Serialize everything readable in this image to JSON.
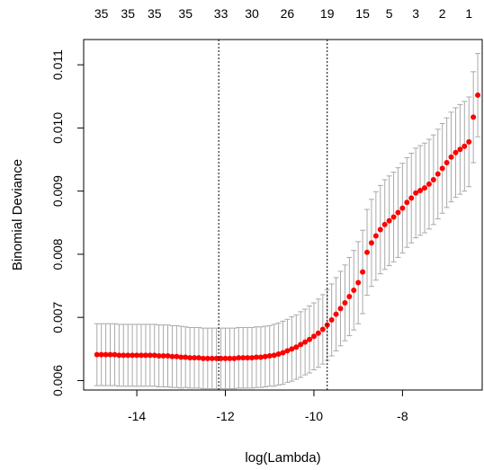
{
  "chart_data": {
    "type": "scatter",
    "xlabel": "log(Lambda)",
    "ylabel": "Binomial Deviance",
    "xlim": [
      -15.2,
      -6.2
    ],
    "ylim": [
      0.00585,
      0.0114
    ],
    "x_ticks": [
      -14,
      -12,
      -10,
      -8
    ],
    "x_tick_labels": [
      "-14",
      "-12",
      "-10",
      "-8"
    ],
    "y_ticks": [
      0.006,
      0.007,
      0.008,
      0.009,
      0.01,
      0.011
    ],
    "y_tick_labels": [
      "0.006",
      "0.007",
      "0.008",
      "0.009",
      "0.010",
      "0.011"
    ],
    "top_axis": {
      "ticks": [
        -14.8,
        -14.2,
        -13.6,
        -12.9,
        -12.1,
        -11.4,
        -10.6,
        -9.7,
        -8.9,
        -8.3,
        -7.7,
        -7.1,
        -6.5
      ],
      "labels": [
        "35",
        "35",
        "35",
        "35",
        "33",
        "30",
        "26",
        "19",
        "15",
        "5",
        "3",
        "2",
        "1"
      ]
    },
    "vlines": [
      -12.15,
      -9.7
    ],
    "point_color": "#ff0000",
    "errorbar_color": "#a9a9a9",
    "grid": false,
    "series": [
      {
        "x": [
          -14.9,
          -14.8,
          -14.7,
          -14.6,
          -14.5,
          -14.4,
          -14.3,
          -14.2,
          -14.1,
          -14.0,
          -13.9,
          -13.8,
          -13.7,
          -13.6,
          -13.5,
          -13.4,
          -13.3,
          -13.2,
          -13.1,
          -13.0,
          -12.9,
          -12.8,
          -12.7,
          -12.6,
          -12.5,
          -12.4,
          -12.3,
          -12.2,
          -12.1,
          -12.0,
          -11.9,
          -11.8,
          -11.7,
          -11.6,
          -11.5,
          -11.4,
          -11.3,
          -11.2,
          -11.1,
          -11.0,
          -10.9,
          -10.8,
          -10.7,
          -10.6,
          -10.5,
          -10.4,
          -10.3,
          -10.2,
          -10.1,
          -10.0,
          -9.9,
          -9.8,
          -9.7,
          -9.6,
          -9.5,
          -9.4,
          -9.3,
          -9.2,
          -9.1,
          -9.0,
          -8.9,
          -8.8,
          -8.7,
          -8.6,
          -8.5,
          -8.4,
          -8.3,
          -8.2,
          -8.1,
          -8.0,
          -7.9,
          -7.8,
          -7.7,
          -7.6,
          -7.5,
          -7.4,
          -7.3,
          -7.2,
          -7.1,
          -7.0,
          -6.9,
          -6.8,
          -6.7,
          -6.6,
          -6.5
        ],
        "y": [
          0.00641,
          0.00641,
          0.00641,
          0.00641,
          0.00641,
          0.0064,
          0.0064,
          0.0064,
          0.0064,
          0.0064,
          0.0064,
          0.0064,
          0.0064,
          0.0064,
          0.00639,
          0.00639,
          0.00639,
          0.00638,
          0.00638,
          0.00637,
          0.00637,
          0.00636,
          0.00636,
          0.00636,
          0.00635,
          0.00635,
          0.00635,
          0.00635,
          0.00635,
          0.00635,
          0.00635,
          0.00635,
          0.00636,
          0.00636,
          0.00636,
          0.00636,
          0.00637,
          0.00637,
          0.00638,
          0.00639,
          0.0064,
          0.00642,
          0.00644,
          0.00647,
          0.0065,
          0.00653,
          0.00657,
          0.00661,
          0.00665,
          0.0067,
          0.00675,
          0.00681,
          0.00688,
          0.00696,
          0.00705,
          0.00714,
          0.00723,
          0.00733,
          0.00743,
          0.00755,
          0.00772,
          0.00803,
          0.00818,
          0.00829,
          0.00839,
          0.00847,
          0.00853,
          0.00859,
          0.00866,
          0.00873,
          0.00882,
          0.00889,
          0.00897,
          0.00901,
          0.00905,
          0.00911,
          0.00918,
          0.00927,
          0.00936,
          0.00945,
          0.00954,
          0.00961,
          0.00966,
          0.00971,
          0.00978
        ],
        "err": [
          0.00049,
          0.00049,
          0.00049,
          0.00049,
          0.00049,
          0.00049,
          0.00049,
          0.00049,
          0.00049,
          0.00049,
          0.00049,
          0.00049,
          0.00049,
          0.00049,
          0.00049,
          0.00049,
          0.00049,
          0.00049,
          0.00049,
          0.00049,
          0.00048,
          0.00048,
          0.00048,
          0.00048,
          0.00048,
          0.00048,
          0.00048,
          0.00048,
          0.00048,
          0.00048,
          0.00048,
          0.00048,
          0.00048,
          0.00048,
          0.00048,
          0.00048,
          0.00048,
          0.00048,
          0.00048,
          0.00048,
          0.00049,
          0.00049,
          0.0005,
          0.0005,
          0.00051,
          0.00051,
          0.00052,
          0.00052,
          0.00053,
          0.00053,
          0.00054,
          0.00055,
          0.00056,
          0.00057,
          0.00058,
          0.00059,
          0.0006,
          0.00062,
          0.00063,
          0.00065,
          0.00066,
          0.00068,
          0.00069,
          0.0007,
          0.0007,
          0.00071,
          0.00071,
          0.00071,
          0.00071,
          0.00071,
          0.00071,
          0.00071,
          0.00071,
          0.00071,
          0.00071,
          0.00071,
          0.00071,
          0.00071,
          0.00071,
          0.00071,
          0.00071,
          0.00071,
          0.00071,
          0.00071,
          0.00071
        ]
      }
    ],
    "extra_points": [
      {
        "x": -6.4,
        "y": 0.01017,
        "err": 0.00072
      },
      {
        "x": -6.3,
        "y": 0.01052,
        "err": 0.00066
      }
    ]
  }
}
